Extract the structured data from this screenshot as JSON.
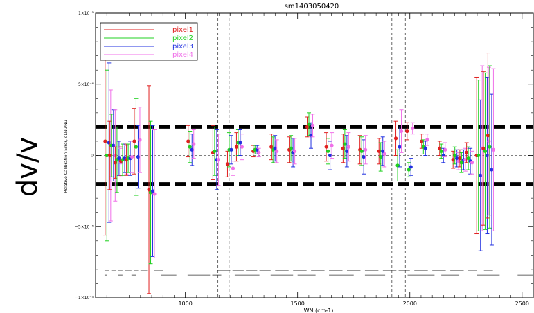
{
  "page": {
    "side_label": "dv/v"
  },
  "chart_data": {
    "type": "scatter",
    "title": "sm1403050420",
    "xlabel": "WN (cm-1)",
    "ylabel": "Relative Calibration Error, dLNu/Nu",
    "xlim": [
      600,
      2550
    ],
    "ylim": [
      -1e-05,
      1e-05
    ],
    "x_ticks": [
      1000,
      1500,
      2000,
      2500
    ],
    "x_tick_labels": [
      "1000",
      "1500",
      "2000",
      "2500"
    ],
    "y_ticks": [
      -1e-05,
      -5e-06,
      0,
      5e-06,
      1e-05
    ],
    "y_tick_labels": [
      "−1×10⁻⁵",
      "−5×10⁻⁶",
      "0",
      "5×10⁻⁶",
      "1×10⁻⁵"
    ],
    "thresholds": [
      2e-06,
      -2e-06
    ],
    "zero_line": 0,
    "vertical_dashed_lines": [
      1145,
      1195,
      1920,
      1980
    ],
    "legend_position": "top-left",
    "series": [
      {
        "name": "pixel1",
        "color": "#e02020"
      },
      {
        "name": "pixel2",
        "color": "#20d020"
      },
      {
        "name": "pixel3",
        "color": "#2030e0"
      },
      {
        "name": "pixel4",
        "color": "#f070e8"
      }
    ],
    "groups": [
      {
        "x": 655,
        "p1": [
          1e-06,
          6.6e-06
        ],
        "p2": [
          0.0,
          6e-06
        ],
        "p3": [
          9e-07,
          5.6e-06
        ],
        "p4": [
          0.0,
          4.6e-06
        ]
      },
      {
        "x": 675,
        "p1": [
          0.0,
          2.4e-06
        ],
        "p2": [
          7e-07,
          2.2e-06
        ],
        "p3": [
          7e-07,
          2.5e-06
        ],
        "p4": [
          0.0,
          3.2e-06
        ]
      },
      {
        "x": 700,
        "p1": [
          -5e-07,
          1.1e-06
        ],
        "p2": [
          -3e-07,
          2.3e-06
        ],
        "p3": [
          -2e-07,
          1.2e-06
        ],
        "p4": [
          -5e-07,
          1e-06
        ]
      },
      {
        "x": 725,
        "p1": [
          -4e-07,
          1e-06
        ],
        "p2": [
          -3e-07,
          1.1e-06
        ],
        "p3": [
          -2e-07,
          1e-06
        ],
        "p4": [
          -3e-07,
          1e-06
        ]
      },
      {
        "x": 750,
        "p1": [
          -3e-07,
          1.1e-06
        ],
        "p2": [
          -2e-07,
          1e-06
        ],
        "p3": [
          -2e-07,
          1.2e-06
        ],
        "p4": [
          -1e-07,
          1.1e-06
        ]
      },
      {
        "x": 785,
        "p1": [
          1e-06,
          2.3e-06
        ],
        "p2": [
          6e-07,
          3.4e-06
        ],
        "p3": [
          -1e-07,
          2.2e-06
        ],
        "p4": [
          1.1e-06,
          2.3e-06
        ]
      },
      {
        "x": 850,
        "p1": [
          -2.4e-06,
          7.3e-06
        ],
        "p2": [
          -2.6e-06,
          5e-06
        ],
        "p3": [
          -2.5e-06,
          4.6e-06
        ],
        "p4": [
          -2.7e-06,
          4.5e-06
        ]
      },
      {
        "x": 1025,
        "p1": [
          1e-06,
          1.1e-06
        ],
        "p2": [
          6e-07,
          1.1e-06
        ],
        "p3": [
          4e-07,
          1.1e-06
        ],
        "p4": [
          8e-07,
          1e-06
        ]
      },
      {
        "x": 1135,
        "p1": [
          2e-07,
          1.9e-06
        ],
        "p2": [
          3e-07,
          1.7e-06
        ],
        "p3": [
          -3e-07,
          2.1e-06
        ],
        "p4": [
          -3e-07,
          1.8e-06
        ]
      },
      {
        "x": 1200,
        "p1": [
          -6e-07,
          9e-07
        ],
        "p2": [
          4e-07,
          1.2e-06
        ],
        "p3": [
          4e-07,
          1e-06
        ],
        "p4": [
          -9e-07,
          5e-07
        ]
      },
      {
        "x": 1240,
        "p1": [
          6e-07,
          1e-06
        ],
        "p2": [
          9e-07,
          9e-07
        ],
        "p3": [
          9e-07,
          9e-07
        ],
        "p4": [
          6e-07,
          9e-07
        ]
      },
      {
        "x": 1315,
        "p1": [
          3e-07,
          4e-07
        ],
        "p2": [
          4e-07,
          3e-07
        ],
        "p3": [
          4e-07,
          3e-07
        ],
        "p4": [
          2e-07,
          3e-07
        ]
      },
      {
        "x": 1395,
        "p1": [
          6e-07,
          9e-07
        ],
        "p2": [
          4e-07,
          9e-07
        ],
        "p3": [
          5e-07,
          9e-07
        ],
        "p4": [
          3e-07,
          8e-07
        ]
      },
      {
        "x": 1475,
        "p1": [
          4e-07,
          9e-07
        ],
        "p2": [
          5e-07,
          9e-07
        ],
        "p3": [
          2e-07,
          1e-06
        ],
        "p4": [
          3e-07,
          9e-07
        ]
      },
      {
        "x": 1555,
        "p1": [
          2e-06,
          7e-07
        ],
        "p2": [
          2.2e-06,
          8e-07
        ],
        "p3": [
          1.4e-06,
          9e-07
        ],
        "p4": [
          2.1e-06,
          8e-07
        ]
      },
      {
        "x": 1640,
        "p1": [
          6e-07,
          1e-06
        ],
        "p2": [
          3e-07,
          9e-07
        ],
        "p3": [
          0.0,
          1e-06
        ],
        "p4": [
          7e-07,
          9e-07
        ]
      },
      {
        "x": 1715,
        "p1": [
          5e-07,
          1e-06
        ],
        "p2": [
          8e-07,
          1e-06
        ],
        "p3": [
          3e-07,
          1.1e-06
        ],
        "p4": [
          6e-07,
          1e-06
        ]
      },
      {
        "x": 1790,
        "p1": [
          4e-07,
          1e-06
        ],
        "p2": [
          3e-07,
          1e-06
        ],
        "p3": [
          -1e-07,
          1.2e-06
        ],
        "p4": [
          4e-07,
          1e-06
        ]
      },
      {
        "x": 1875,
        "p1": [
          3e-07,
          9e-07
        ],
        "p2": [
          -1e-07,
          1e-06
        ],
        "p3": [
          3e-07,
          1e-06
        ],
        "p4": [
          1e-07,
          9e-07
        ]
      },
      {
        "x": 1950,
        "p1": [
          1.2e-06,
          1.2e-06
        ],
        "p2": [
          -7e-07,
          1.1e-06
        ],
        "p3": [
          6e-07,
          1.4e-06
        ],
        "p4": [
          1.7e-06,
          1.5e-06
        ]
      },
      {
        "x": 2000,
        "p1": [
          1.7e-06,
          6e-07
        ],
        "p2": [
          -1e-06,
          5e-07
        ],
        "p3": [
          -8e-07,
          6e-07
        ],
        "p4": [
          1.9e-06,
          4e-07
        ]
      },
      {
        "x": 2065,
        "p1": [
          1e-06,
          5e-07
        ],
        "p2": [
          6e-07,
          5e-07
        ],
        "p3": [
          5e-07,
          5e-07
        ],
        "p4": [
          1.1e-06,
          4e-07
        ]
      },
      {
        "x": 2145,
        "p1": [
          5e-07,
          5e-07
        ],
        "p2": [
          3e-07,
          5e-07
        ],
        "p3": [
          0.0,
          5e-07
        ],
        "p4": [
          4e-07,
          5e-07
        ]
      },
      {
        "x": 2205,
        "p1": [
          -3e-07,
          6e-07
        ],
        "p2": [
          0.0,
          6e-07
        ],
        "p3": [
          -2e-07,
          6e-07
        ],
        "p4": [
          -4e-07,
          6e-07
        ]
      },
      {
        "x": 2235,
        "p1": [
          -2e-07,
          6e-07
        ],
        "p2": [
          -5e-07,
          7e-07
        ],
        "p3": [
          -3e-07,
          7e-07
        ],
        "p4": [
          -3e-07,
          8e-07
        ]
      },
      {
        "x": 2265,
        "p1": [
          2e-07,
          7e-07
        ],
        "p2": [
          -2e-07,
          8e-07
        ],
        "p3": [
          -4e-07,
          9e-07
        ],
        "p4": [
          -5e-07,
          8e-07
        ]
      },
      {
        "x": 2310,
        "p1": [
          0.0,
          5.5e-06
        ],
        "p2": [
          0.0,
          5.3e-06
        ],
        "p3": [
          -1.4e-06,
          5.3e-06
        ],
        "p4": [
          5e-07,
          5.8e-06
        ]
      },
      {
        "x": 2340,
        "p1": [
          5e-07,
          5.4e-06
        ],
        "p2": [
          3e-07,
          5.5e-06
        ],
        "p3": [
          0.0,
          5.5e-06
        ],
        "p4": [
          1e-06,
          5.2e-06
        ]
      },
      {
        "x": 2360,
        "p1": [
          1.4e-06,
          5.8e-06
        ],
        "p2": [
          6e-07,
          5.7e-06
        ],
        "p3": [
          -1e-06,
          5.3e-06
        ],
        "p4": [
          4e-07,
          5.7e-06
        ]
      }
    ]
  }
}
